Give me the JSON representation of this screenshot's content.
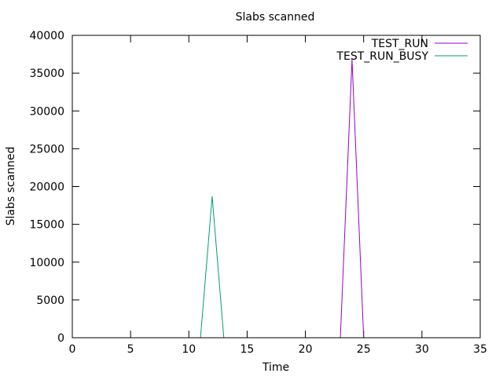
{
  "chart_data": {
    "type": "line",
    "title": "Slabs scanned",
    "xlabel": "Time",
    "ylabel": "Slabs scanned",
    "xlim": [
      0,
      35
    ],
    "ylim": [
      0,
      40000
    ],
    "xticks": [
      0,
      5,
      10,
      15,
      20,
      25,
      30,
      35
    ],
    "yticks": [
      0,
      5000,
      10000,
      15000,
      20000,
      25000,
      30000,
      35000,
      40000
    ],
    "grid": false,
    "legend_position": "top-right",
    "series": [
      {
        "name": "TEST_RUN",
        "color": "#9400d3",
        "x": [
          0,
          23,
          24,
          25,
          35
        ],
        "y": [
          0,
          0,
          36800,
          0,
          0
        ]
      },
      {
        "name": "TEST_RUN_BUSY",
        "color": "#009e73",
        "x": [
          0,
          11,
          12,
          13,
          35
        ],
        "y": [
          0,
          0,
          18700,
          0,
          0
        ]
      }
    ]
  }
}
